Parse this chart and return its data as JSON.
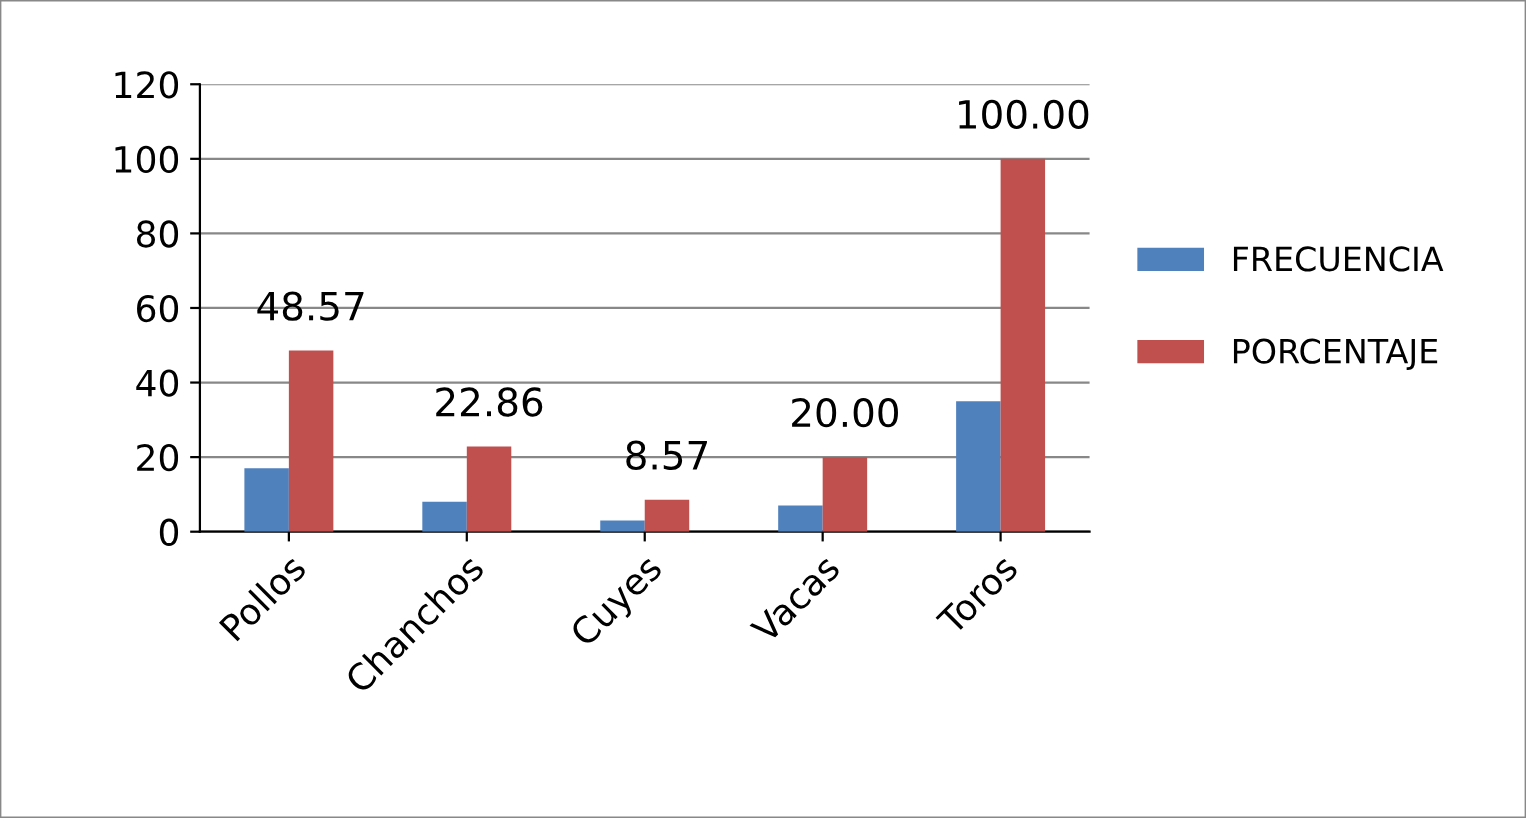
{
  "chart_data": {
    "type": "bar",
    "categories": [
      "Pollos",
      "Chanchos",
      "Cuyes",
      "Vacas",
      "Toros"
    ],
    "series": [
      {
        "name": "FRECUENCIA",
        "color": "#4f81bd",
        "values": [
          17,
          8,
          3,
          7,
          35
        ]
      },
      {
        "name": "PORCENTAJE",
        "color": "#c0504d",
        "values": [
          48.57,
          22.86,
          8.57,
          20.0,
          100.0
        ],
        "value_labels": [
          "48.57",
          "22.86",
          "8.57",
          "20.00",
          "100.00"
        ]
      }
    ],
    "ylim": [
      0,
      120
    ],
    "yticks": [
      0,
      20,
      40,
      60,
      80,
      100,
      120
    ],
    "grid": "y",
    "legend": "right"
  }
}
